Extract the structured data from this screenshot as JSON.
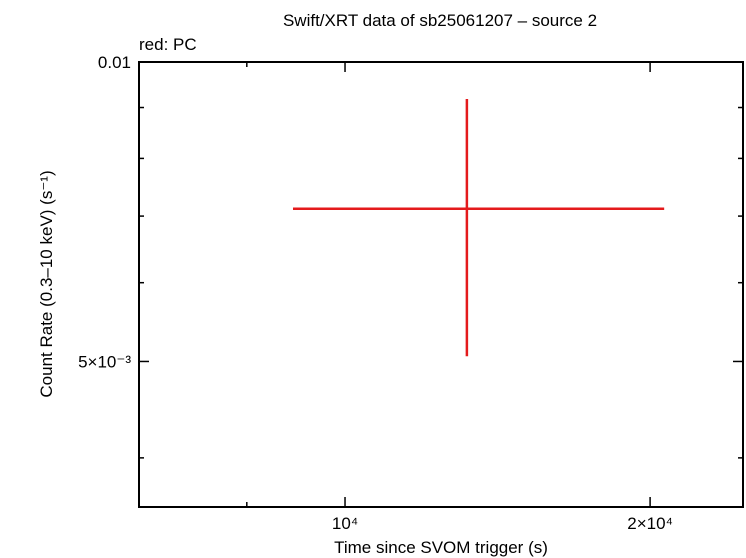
{
  "chart_data": {
    "type": "scatter",
    "title": "Swift/XRT data of sb25061207 – source 2",
    "subtitle": "red: PC",
    "x_label": "Time since SVOM trigger (s)",
    "y_label": "Count Rate (0.3–10 keV) (s⁻¹)",
    "xscale": "log",
    "yscale": "log",
    "xlim": [
      6262,
      24700
    ],
    "ylim": [
      0.00357,
      0.01
    ],
    "xticks": [
      {
        "value": 10000,
        "label": "10⁴"
      },
      {
        "value": 20000,
        "label": "2×10⁴"
      }
    ],
    "xminor": [
      8000
    ],
    "yticks": [
      {
        "value": 0.005,
        "label": "5×10⁻³"
      },
      0.01
    ],
    "yminor": [
      0.004,
      0.006,
      0.007,
      0.008,
      0.009
    ],
    "series": [
      {
        "name": "PC",
        "color": "#e41a1c",
        "x": [
          13190
        ],
        "x_low": [
          8885
        ],
        "x_high": [
          20650
        ],
        "values": [
          0.00712
        ],
        "y_low": [
          0.00506
        ],
        "y_high": [
          0.00918
        ]
      }
    ]
  }
}
